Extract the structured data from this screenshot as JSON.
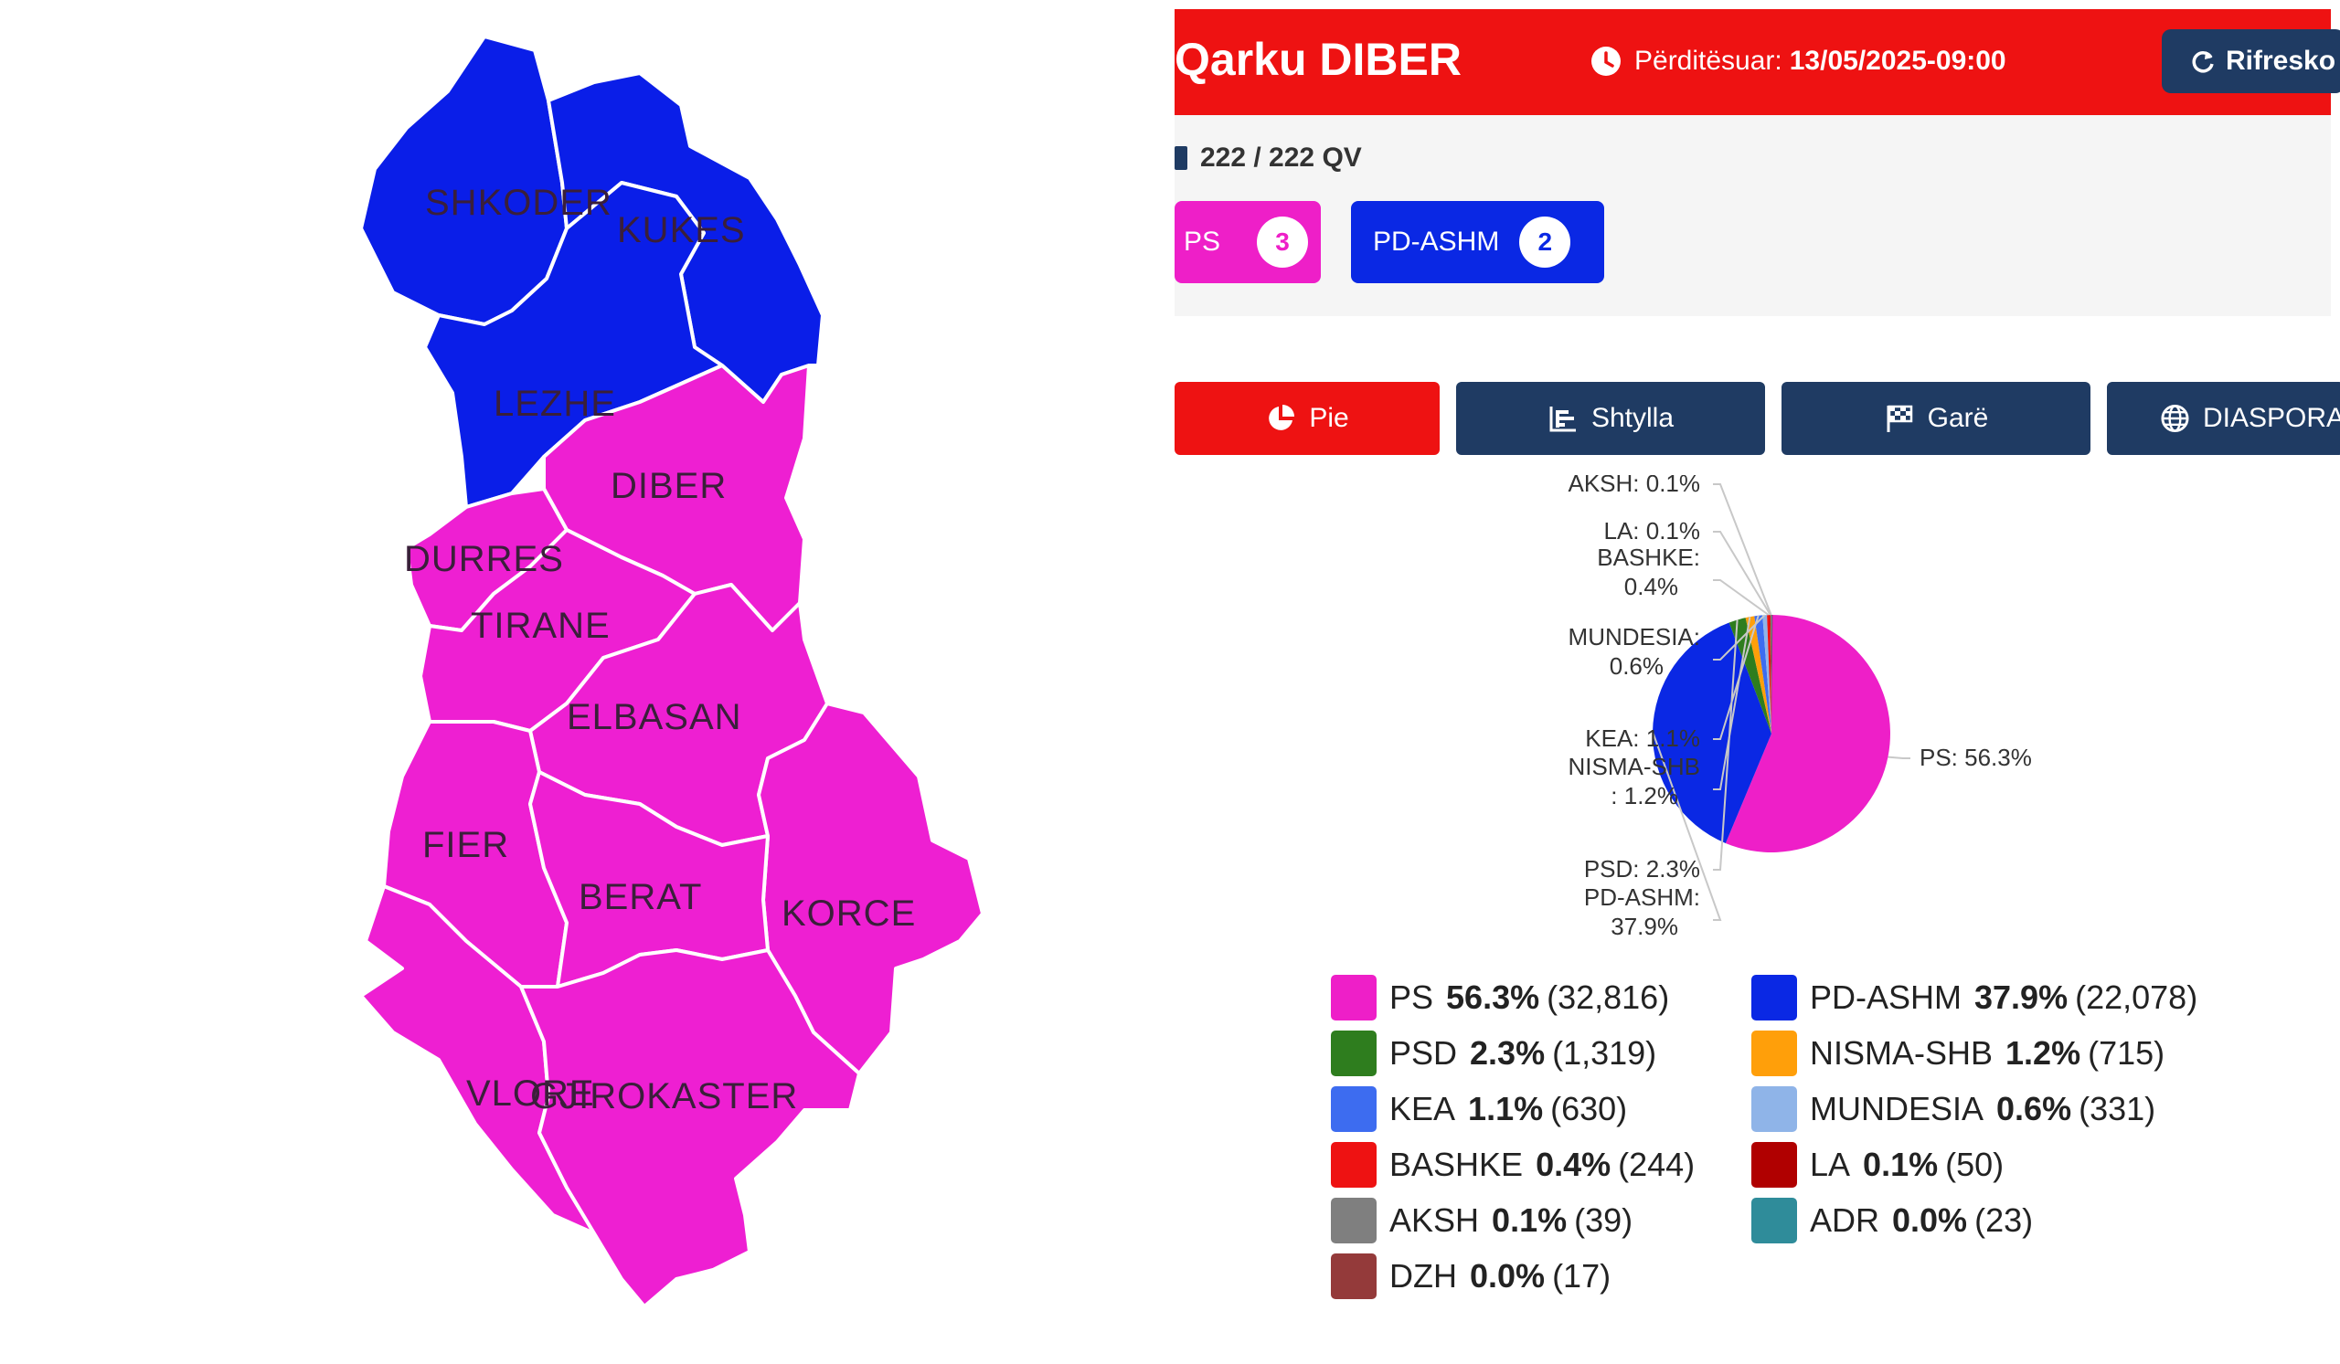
{
  "map": {
    "labels": [
      "SHKODER",
      "KUKES",
      "LEZHE",
      "DIBER",
      "DURRES",
      "TIRANE",
      "ELBASAN",
      "FIER",
      "BERAT",
      "KORCE",
      "VLORE",
      "GJIROKASTER"
    ],
    "colors": {
      "ps": "#ee1fd2",
      "pd": "#0a1ee8"
    }
  },
  "header": {
    "title": "Qarku DIBER",
    "updated_label": "Përditësuar:",
    "updated_value": "13/05/2025-09:00",
    "refresh_label": "Rifresko",
    "clock_icon": "clock-icon",
    "refresh_icon": "refresh-icon"
  },
  "summary": {
    "qv": "222 / 222 QV",
    "seats": [
      {
        "party": "PS",
        "count": "3",
        "color": "#ee1fc8"
      },
      {
        "party": "PD-ASHM",
        "count": "2",
        "color": "#0a28e4"
      }
    ]
  },
  "tabs": [
    {
      "label": "Pie",
      "icon": "pie-chart-icon",
      "active": true
    },
    {
      "label": "Shtylla",
      "icon": "bar-chart-icon",
      "active": false
    },
    {
      "label": "Garë",
      "icon": "flag-icon",
      "active": false
    },
    {
      "label": "DIASPORA",
      "icon": "globe-icon",
      "active": false
    }
  ],
  "chart_data": {
    "type": "pie",
    "slices": [
      {
        "name": "PS",
        "percent": 56.3,
        "votes": 32816,
        "color": "#ee1fc8",
        "label": "PS: 56.3%"
      },
      {
        "name": "PD-ASHM",
        "percent": 37.9,
        "votes": 22078,
        "color": "#0a28e4",
        "label": "PD-ASHM: 37.9%"
      },
      {
        "name": "PSD",
        "percent": 2.3,
        "votes": 1319,
        "color": "#2e7d1e",
        "label": "PSD: 2.3%"
      },
      {
        "name": "NISMA-SHB",
        "percent": 1.2,
        "votes": 715,
        "color": "#ff9f0a",
        "label": "NISMA-SHB: 1.2%"
      },
      {
        "name": "KEA",
        "percent": 1.1,
        "votes": 630,
        "color": "#3d6cf0",
        "label": "KEA: 1.1%"
      },
      {
        "name": "MUNDESIA",
        "percent": 0.6,
        "votes": 331,
        "color": "#8fb4e8",
        "label": "MUNDESIA: 0.6%"
      },
      {
        "name": "BASHKE",
        "percent": 0.4,
        "votes": 244,
        "color": "#ee1212",
        "label": "BASHKE: 0.4%"
      },
      {
        "name": "LA",
        "percent": 0.1,
        "votes": 50,
        "color": "#b00000",
        "label": "LA: 0.1%"
      },
      {
        "name": "AKSH",
        "percent": 0.1,
        "votes": 39,
        "color": "#7f7f7f",
        "label": "AKSH: 0.1%"
      },
      {
        "name": "ADR",
        "percent": 0.0,
        "votes": 23,
        "color": "#2f8c9a",
        "label": ""
      },
      {
        "name": "DZH",
        "percent": 0.0,
        "votes": 17,
        "color": "#943a3a",
        "label": ""
      }
    ]
  },
  "legend": [
    {
      "party": "PS",
      "pct": "56.3%",
      "votes": "(32,816)",
      "color": "#ee1fc8"
    },
    {
      "party": "PD-ASHM",
      "pct": "37.9%",
      "votes": "(22,078)",
      "color": "#0a28e4"
    },
    {
      "party": "PSD",
      "pct": "2.3%",
      "votes": "(1,319)",
      "color": "#2e7d1e"
    },
    {
      "party": "NISMA-SHB",
      "pct": "1.2%",
      "votes": "(715)",
      "color": "#ff9f0a"
    },
    {
      "party": "KEA",
      "pct": "1.1%",
      "votes": "(630)",
      "color": "#3d6cf0"
    },
    {
      "party": "MUNDESIA",
      "pct": "0.6%",
      "votes": "(331)",
      "color": "#8fb4e8"
    },
    {
      "party": "BASHKE",
      "pct": "0.4%",
      "votes": "(244)",
      "color": "#ee1212"
    },
    {
      "party": "LA",
      "pct": "0.1%",
      "votes": "(50)",
      "color": "#b00000"
    },
    {
      "party": "AKSH",
      "pct": "0.1%",
      "votes": "(39)",
      "color": "#7f7f7f"
    },
    {
      "party": "ADR",
      "pct": "0.0%",
      "votes": "(23)",
      "color": "#2f8c9a"
    },
    {
      "party": "DZH",
      "pct": "0.0%",
      "votes": "(17)",
      "color": "#943a3a"
    }
  ]
}
